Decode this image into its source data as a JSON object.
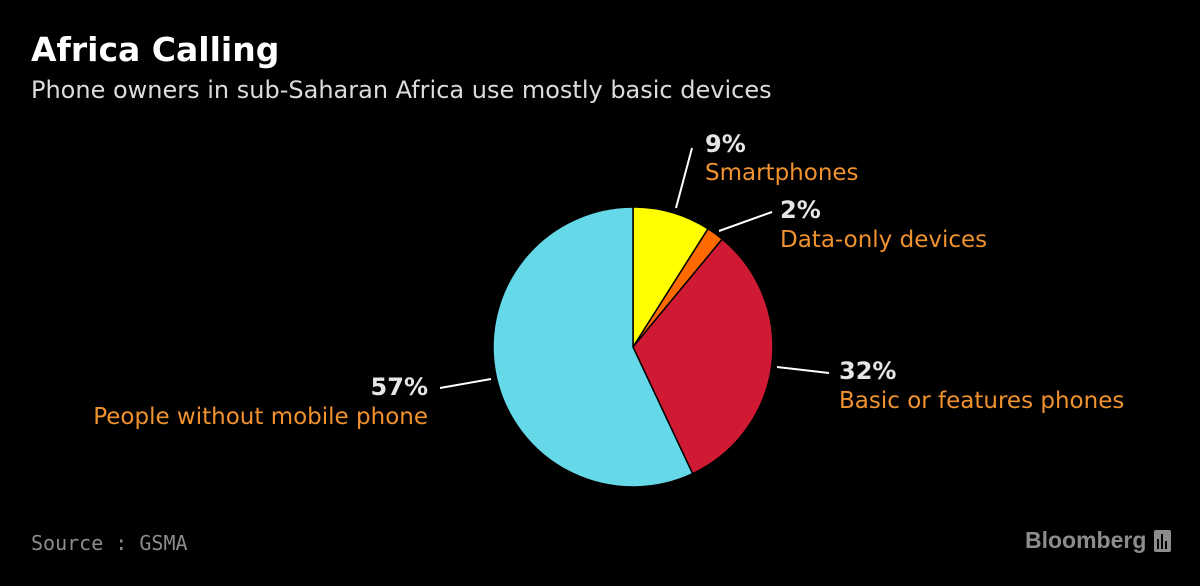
{
  "header": {
    "title": "Africa Calling",
    "subtitle": "Phone owners in sub-Saharan Africa use mostly basic devices"
  },
  "chart_data": {
    "type": "pie",
    "title": "Africa Calling",
    "subtitle": "Phone owners in sub-Saharan Africa use mostly basic devices",
    "start_angle": "12 o'clock, clockwise",
    "slices": [
      {
        "label": "Smartphones",
        "value": 9,
        "value_label": "9%",
        "color": "#ffff00"
      },
      {
        "label": "Data-only devices",
        "value": 2,
        "value_label": "2%",
        "color": "#ff6a00"
      },
      {
        "label": "Basic or features phones",
        "value": 32,
        "value_label": "32%",
        "color": "#d01a34"
      },
      {
        "label": "People without mobile phone",
        "value": 57,
        "value_label": "57%",
        "color": "#66d9e8"
      }
    ],
    "slice_border_color": "#000000",
    "leader_line_color": "#ffffff",
    "value_label_color": "#e6e6e6",
    "category_label_color": "#f0922e"
  },
  "footer": {
    "source": "Source : GSMA",
    "brand": "Bloomberg"
  },
  "colors": {
    "background": "#000000",
    "title": "#ffffff",
    "subtitle": "#dcdcdc",
    "footer": "#8c8c8c"
  },
  "icons": {
    "brand_mark": "bloomberg-chart-icon"
  }
}
